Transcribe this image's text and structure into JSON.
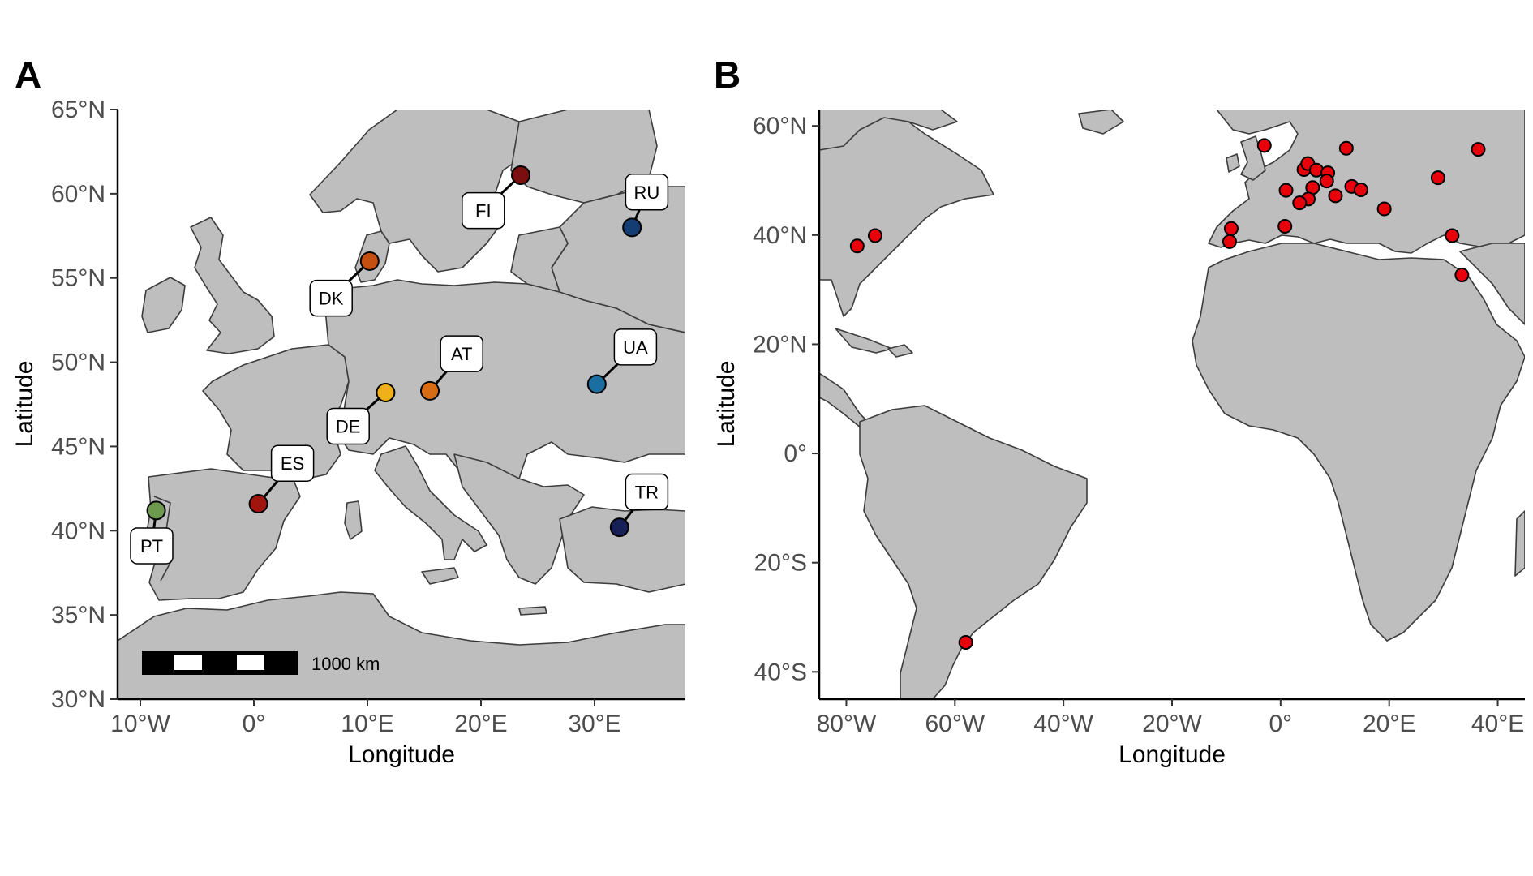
{
  "panel_a": {
    "label": "A",
    "xlabel": "Longitude",
    "ylabel": "Latitude",
    "xlim": [
      -12,
      38
    ],
    "ylim": [
      30,
      65
    ],
    "x_ticks": [
      {
        "value": -10,
        "label": "10°W"
      },
      {
        "value": 0,
        "label": "0°"
      },
      {
        "value": 10,
        "label": "10°E"
      },
      {
        "value": 20,
        "label": "20°E"
      },
      {
        "value": 30,
        "label": "30°E"
      }
    ],
    "y_ticks": [
      {
        "value": 30,
        "label": "30°N"
      },
      {
        "value": 35,
        "label": "35°N"
      },
      {
        "value": 40,
        "label": "40°N"
      },
      {
        "value": 45,
        "label": "45°N"
      },
      {
        "value": 50,
        "label": "50°N"
      },
      {
        "value": 55,
        "label": "55°N"
      },
      {
        "value": 60,
        "label": "60°N"
      },
      {
        "value": 65,
        "label": "65°N"
      }
    ],
    "sites": [
      {
        "code": "PT",
        "lon": -8.6,
        "lat": 41.2,
        "color": "#6e9a4d",
        "label_lon": -9.0,
        "label_lat": 39.1
      },
      {
        "code": "ES",
        "lon": 0.4,
        "lat": 41.6,
        "color": "#a0160f",
        "label_lon": 3.4,
        "label_lat": 44.0
      },
      {
        "code": "DE",
        "lon": 11.6,
        "lat": 48.2,
        "color": "#f0b019",
        "label_lon": 8.3,
        "label_lat": 46.2
      },
      {
        "code": "AT",
        "lon": 15.5,
        "lat": 48.3,
        "color": "#d86c14",
        "label_lon": 18.3,
        "label_lat": 50.5
      },
      {
        "code": "DK",
        "lon": 10.2,
        "lat": 56.0,
        "color": "#c44f10",
        "label_lon": 6.8,
        "label_lat": 53.8
      },
      {
        "code": "FI",
        "lon": 23.5,
        "lat": 61.1,
        "color": "#7b0e0e",
        "label_lon": 20.2,
        "label_lat": 59.0
      },
      {
        "code": "RU",
        "lon": 33.3,
        "lat": 58.0,
        "color": "#143d73",
        "label_lon": 34.6,
        "label_lat": 60.1
      },
      {
        "code": "UA",
        "lon": 30.2,
        "lat": 48.7,
        "color": "#1b6ea0",
        "label_lon": 33.6,
        "label_lat": 50.9
      },
      {
        "code": "TR",
        "lon": 32.2,
        "lat": 40.2,
        "color": "#171f57",
        "label_lon": 34.6,
        "label_lat": 42.3
      }
    ],
    "scalebar": {
      "label": "1000 km"
    }
  },
  "panel_b": {
    "label": "B",
    "xlabel": "Longitude",
    "ylabel": "Latitude",
    "xlim": [
      -85,
      45
    ],
    "ylim": [
      -45,
      63
    ],
    "x_ticks": [
      {
        "value": -80,
        "label": "80°W"
      },
      {
        "value": -60,
        "label": "60°W"
      },
      {
        "value": -40,
        "label": "40°W"
      },
      {
        "value": -20,
        "label": "20°W"
      },
      {
        "value": 0,
        "label": "0°"
      },
      {
        "value": 20,
        "label": "20°E"
      },
      {
        "value": 40,
        "label": "40°E"
      }
    ],
    "y_ticks": [
      {
        "value": -40,
        "label": "40°S"
      },
      {
        "value": -20,
        "label": "20°S"
      },
      {
        "value": 0,
        "label": "0°"
      },
      {
        "value": 20,
        "label": "20°N"
      },
      {
        "value": 40,
        "label": "40°N"
      },
      {
        "value": 60,
        "label": "60°N"
      }
    ],
    "point_color": "#e8000b",
    "points": [
      {
        "lon": -78.0,
        "lat": 38.0
      },
      {
        "lon": -74.7,
        "lat": 39.9
      },
      {
        "lon": -58.0,
        "lat": -34.6
      },
      {
        "lon": -3.0,
        "lat": 56.4
      },
      {
        "lon": 1.0,
        "lat": 48.2
      },
      {
        "lon": 0.8,
        "lat": 41.6
      },
      {
        "lon": -9.1,
        "lat": 41.2
      },
      {
        "lon": -9.4,
        "lat": 38.8
      },
      {
        "lon": 4.3,
        "lat": 52.0
      },
      {
        "lon": 5.0,
        "lat": 53.1
      },
      {
        "lon": 6.6,
        "lat": 51.9
      },
      {
        "lon": 8.7,
        "lat": 51.4
      },
      {
        "lon": 8.5,
        "lat": 49.9
      },
      {
        "lon": 5.9,
        "lat": 48.7
      },
      {
        "lon": 5.1,
        "lat": 46.6
      },
      {
        "lon": 3.5,
        "lat": 45.9
      },
      {
        "lon": 12.1,
        "lat": 55.9
      },
      {
        "lon": 13.1,
        "lat": 48.9
      },
      {
        "lon": 14.8,
        "lat": 48.3
      },
      {
        "lon": 10.1,
        "lat": 47.2
      },
      {
        "lon": 19.1,
        "lat": 44.8
      },
      {
        "lon": 29.0,
        "lat": 50.5
      },
      {
        "lon": 31.6,
        "lat": 39.9
      },
      {
        "lon": 33.4,
        "lat": 32.7
      },
      {
        "lon": 36.4,
        "lat": 55.7
      }
    ]
  }
}
